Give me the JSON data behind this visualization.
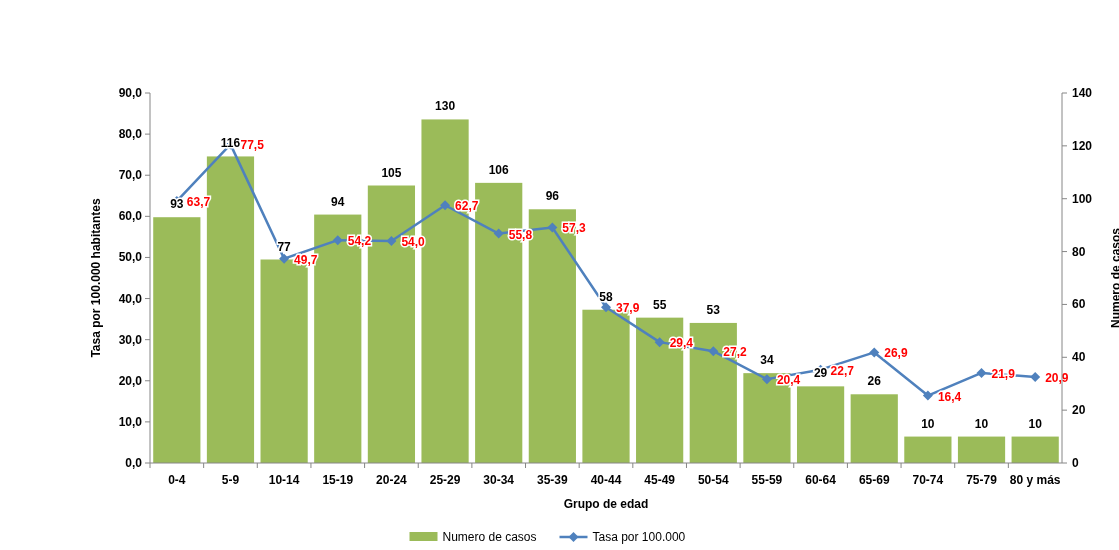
{
  "chart_data": {
    "type": "bar",
    "xlabel": "Grupo de edad",
    "ylabel": "Tasa por 100.000 habitantes",
    "y2label": "Numero de casos",
    "categories": [
      "0-4",
      "5-9",
      "10-14",
      "15-19",
      "20-24",
      "25-29",
      "30-34",
      "35-39",
      "40-44",
      "45-49",
      "50-54",
      "55-59",
      "60-64",
      "65-69",
      "70-74",
      "75-79",
      "80 y más"
    ],
    "series": [
      {
        "name": "Numero de casos",
        "axis": "y2",
        "color": "#9bbb59",
        "values": [
          93,
          116,
          77,
          94,
          105,
          130,
          106,
          96,
          58,
          55,
          53,
          34,
          29,
          26,
          10,
          10,
          10
        ],
        "value_labels": [
          "93",
          "116",
          "77",
          "94",
          "105",
          "130",
          "106",
          "96",
          "58",
          "55",
          "53",
          "34",
          "29",
          "26",
          "10",
          "10",
          "10"
        ]
      },
      {
        "name": "Tasa por 100.000",
        "type": "line",
        "color": "#4f81bd",
        "marker": "diamond",
        "values": [
          63.7,
          77.5,
          49.7,
          54.2,
          54.0,
          62.7,
          55.8,
          57.3,
          37.9,
          29.4,
          27.2,
          20.4,
          22.7,
          26.9,
          16.4,
          21.9,
          20.9
        ],
        "value_labels": [
          "63,7",
          "77,5",
          "49,7",
          "54,2",
          "54,0",
          "62,7",
          "55,8",
          "57,3",
          "37,9",
          "29,4",
          "27,2",
          "20,4",
          "22,7",
          "26,9",
          "16,4",
          "21,9",
          "20,9"
        ]
      }
    ],
    "ylim": [
      0,
      90
    ],
    "yticks": [
      {
        "value": 0,
        "label": "0,0"
      },
      {
        "value": 10,
        "label": "10,0"
      },
      {
        "value": 20,
        "label": "20,0"
      },
      {
        "value": 30,
        "label": "30,0"
      },
      {
        "value": 40,
        "label": "40,0"
      },
      {
        "value": 50,
        "label": "50,0"
      },
      {
        "value": 60,
        "label": "60,0"
      },
      {
        "value": 70,
        "label": "70,0"
      },
      {
        "value": 80,
        "label": "80,0"
      },
      {
        "value": 90,
        "label": "90,0"
      }
    ],
    "y2lim": [
      0,
      140
    ],
    "y2ticks": [
      0,
      20,
      40,
      60,
      80,
      100,
      120,
      140
    ],
    "legend": "bottom",
    "grid": false
  }
}
